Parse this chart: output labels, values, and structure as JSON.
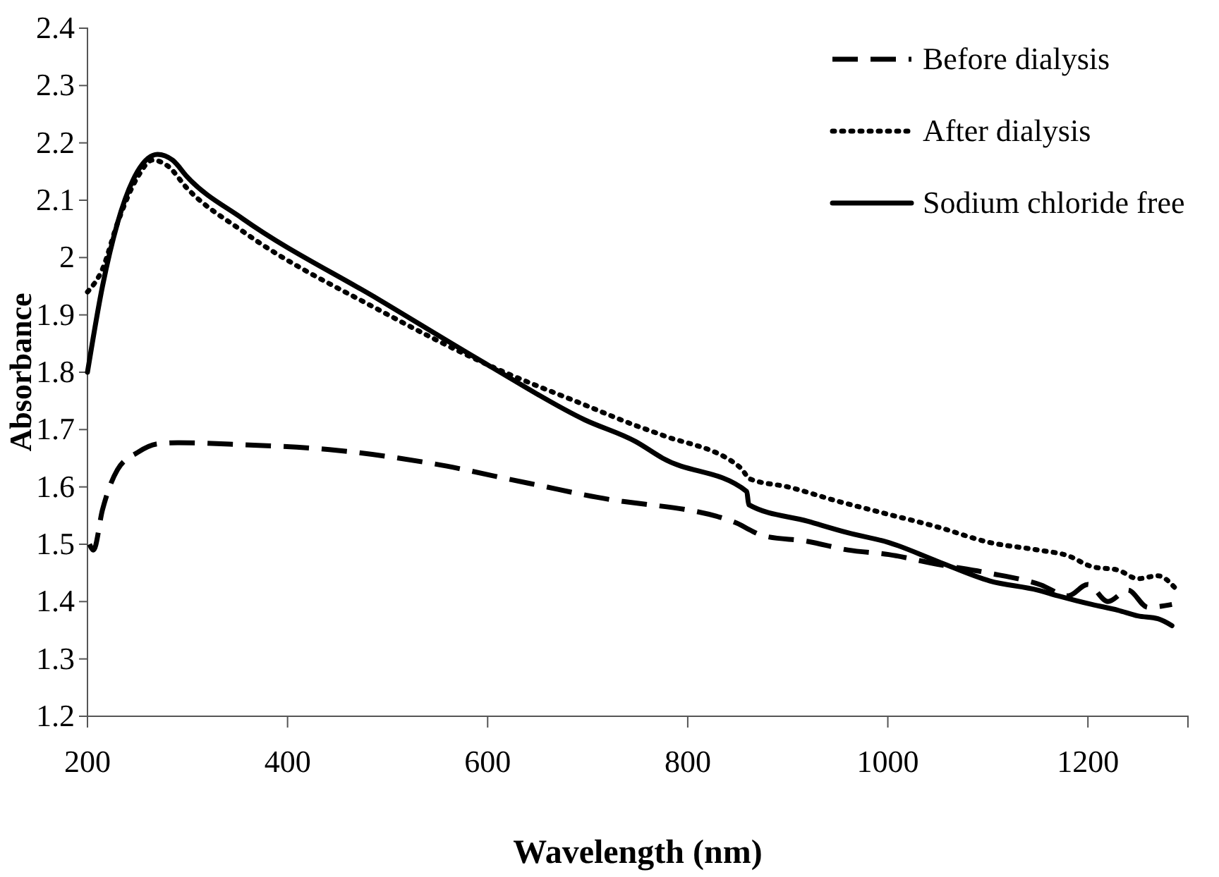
{
  "chart_data": {
    "type": "line",
    "xlabel": "Wavelength (nm)",
    "ylabel": "Absorbance",
    "xlim": [
      200,
      1300
    ],
    "xticks": [
      200,
      400,
      600,
      800,
      1000,
      1200
    ],
    "ylim": [
      1.2,
      2.4
    ],
    "yticks": [
      1.2,
      1.3,
      1.4,
      1.5,
      1.6,
      1.7,
      1.8,
      1.9,
      2,
      2.1,
      2.2,
      2.3,
      2.4
    ],
    "grid": false,
    "legend": "top right",
    "marker": "none",
    "series": [
      {
        "name": "Before dialysis",
        "color": "#000000",
        "line_style": "dashed",
        "x": [
          202,
          206,
          215,
          230,
          250,
          270,
          290,
          350,
          442,
          544,
          642,
          734,
          748,
          849,
          862,
          875,
          920,
          960,
          1001,
          1050,
          1100,
          1153,
          1180,
          1200,
          1220,
          1240,
          1260,
          1284
        ],
        "values": [
          1.5,
          1.49,
          1.56,
          1.63,
          1.66,
          1.675,
          1.677,
          1.674,
          1.665,
          1.641,
          1.606,
          1.575,
          1.572,
          1.537,
          1.525,
          1.515,
          1.505,
          1.49,
          1.482,
          1.465,
          1.45,
          1.429,
          1.41,
          1.43,
          1.4,
          1.42,
          1.39,
          1.395
        ]
      },
      {
        "name": "After dialysis",
        "color": "#000000",
        "line_style": "dotted",
        "x": [
          200,
          215,
          230,
          250,
          265,
          280,
          300,
          355,
          491,
          600,
          697,
          748,
          775,
          853,
          862,
          900,
          950,
          1001,
          1050,
          1102,
          1150,
          1180,
          1204,
          1230,
          1250,
          1270,
          1287
        ],
        "values": [
          1.94,
          1.98,
          2.06,
          2.14,
          2.17,
          2.16,
          2.12,
          2.046,
          1.909,
          1.813,
          1.743,
          1.707,
          1.69,
          1.633,
          1.614,
          1.6,
          1.575,
          1.552,
          1.53,
          1.503,
          1.49,
          1.48,
          1.461,
          1.455,
          1.44,
          1.445,
          1.424
        ]
      },
      {
        "name": "Sodium chloride free",
        "color": "#000000",
        "line_style": "solid",
        "x": [
          200,
          215,
          230,
          250,
          270,
          285,
          300,
          355,
          491,
          600,
          697,
          748,
          775,
          859,
          861,
          920,
          960,
          1001,
          1050,
          1102,
          1150,
          1170,
          1204,
          1230,
          1250,
          1270,
          1284
        ],
        "values": [
          1.8,
          1.95,
          2.06,
          2.15,
          2.18,
          2.17,
          2.14,
          2.068,
          1.927,
          1.813,
          1.717,
          1.679,
          1.65,
          1.592,
          1.569,
          1.54,
          1.52,
          1.503,
          1.47,
          1.436,
          1.42,
          1.41,
          1.395,
          1.385,
          1.375,
          1.37,
          1.358
        ]
      }
    ]
  }
}
